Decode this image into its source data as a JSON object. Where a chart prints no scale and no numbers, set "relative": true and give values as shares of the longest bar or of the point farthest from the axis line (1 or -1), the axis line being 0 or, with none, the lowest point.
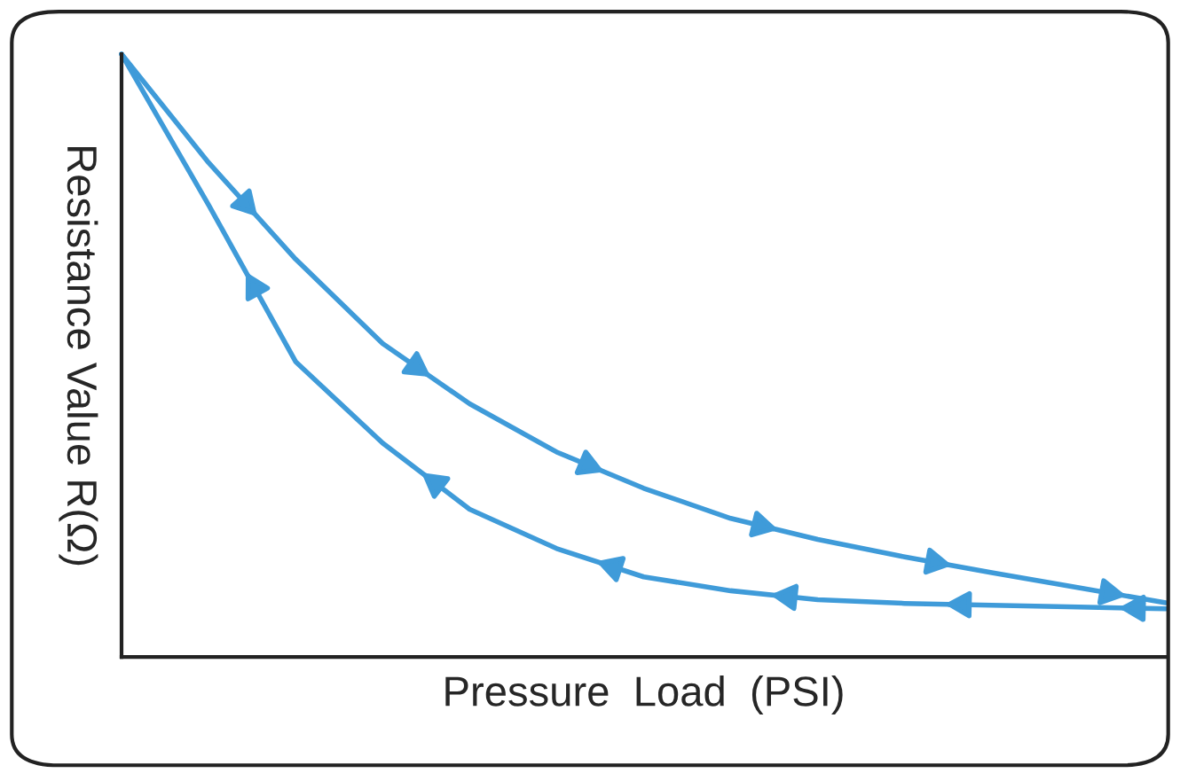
{
  "chart_data": {
    "type": "line",
    "relative": true,
    "xlabel": "Pressure  Load  (PSI)",
    "ylabel": "Resistance Value R(Ω)",
    "categories": [
      null,
      null,
      null,
      null,
      null,
      null,
      null,
      null,
      null,
      null,
      null,
      null,
      null
    ],
    "series": [
      {
        "color": "#3f9bd9",
        "values": [
          1.0,
          0.82,
          0.66,
          0.52,
          0.42,
          0.34,
          0.28,
          0.23,
          0.195,
          0.166,
          0.14,
          0.115,
          0.09
        ]
      },
      {
        "color": "#3f9bd9",
        "values": [
          1.0,
          0.75,
          0.49,
          0.355,
          0.245,
          0.18,
          0.133,
          0.11,
          0.095,
          0.089,
          0.086,
          0.083,
          0.08
        ]
      }
    ]
  }
}
